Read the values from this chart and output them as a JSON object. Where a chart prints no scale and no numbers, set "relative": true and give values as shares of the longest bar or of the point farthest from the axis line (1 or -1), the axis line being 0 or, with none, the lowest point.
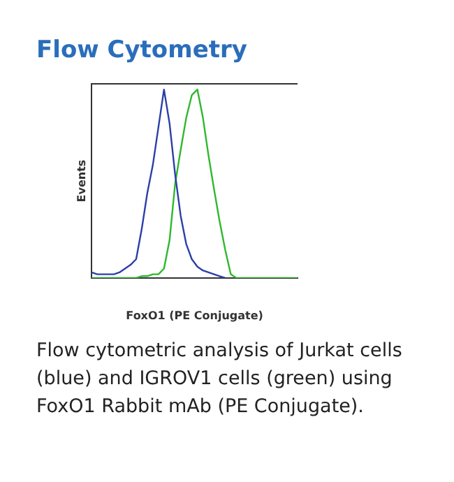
{
  "chart_data": {
    "type": "line",
    "title": "Flow Cytometry",
    "xlabel": "FoxO1 (PE Conjugate)",
    "ylabel": "Events",
    "relative": true,
    "grid": false,
    "legend": false,
    "marker": "none",
    "categories": [
      null,
      null,
      null,
      null,
      null,
      null,
      null,
      null,
      null,
      null,
      null,
      null,
      null,
      null,
      null,
      null,
      null,
      null,
      null,
      null,
      null,
      null,
      null,
      null,
      null,
      null,
      null,
      null,
      null,
      null,
      null,
      null,
      null,
      null,
      null,
      null,
      null,
      null
    ],
    "series": [
      {
        "color": "#2b3fa8",
        "values": [
          0.03,
          0.02,
          0.02,
          0.02,
          0.02,
          0.03,
          0.05,
          0.07,
          0.1,
          0.26,
          0.45,
          0.6,
          0.8,
          1,
          0.82,
          0.55,
          0.33,
          0.18,
          0.1,
          0.06,
          0.04,
          0.03,
          0.02,
          0.01,
          0,
          null,
          null,
          null,
          null,
          null,
          null,
          null,
          null,
          null,
          null,
          null,
          null,
          null
        ]
      },
      {
        "color": "#2eb82e",
        "values": [
          0,
          0,
          0,
          0,
          0,
          0,
          0,
          0,
          0,
          0.01,
          0.01,
          0.02,
          0.02,
          0.05,
          0.2,
          0.5,
          0.68,
          0.85,
          0.97,
          1,
          0.85,
          0.65,
          0.47,
          0.3,
          0.15,
          0.02,
          0,
          0,
          0,
          0,
          0,
          0,
          0,
          0,
          0,
          0,
          0,
          0
        ]
      }
    ],
    "annotations": [
      "Flow cytometric analysis of Jurkat cells (blue) and IGROV1 cells (green) using FoxO1 Rabbit mAb (PE Conjugate)."
    ]
  }
}
